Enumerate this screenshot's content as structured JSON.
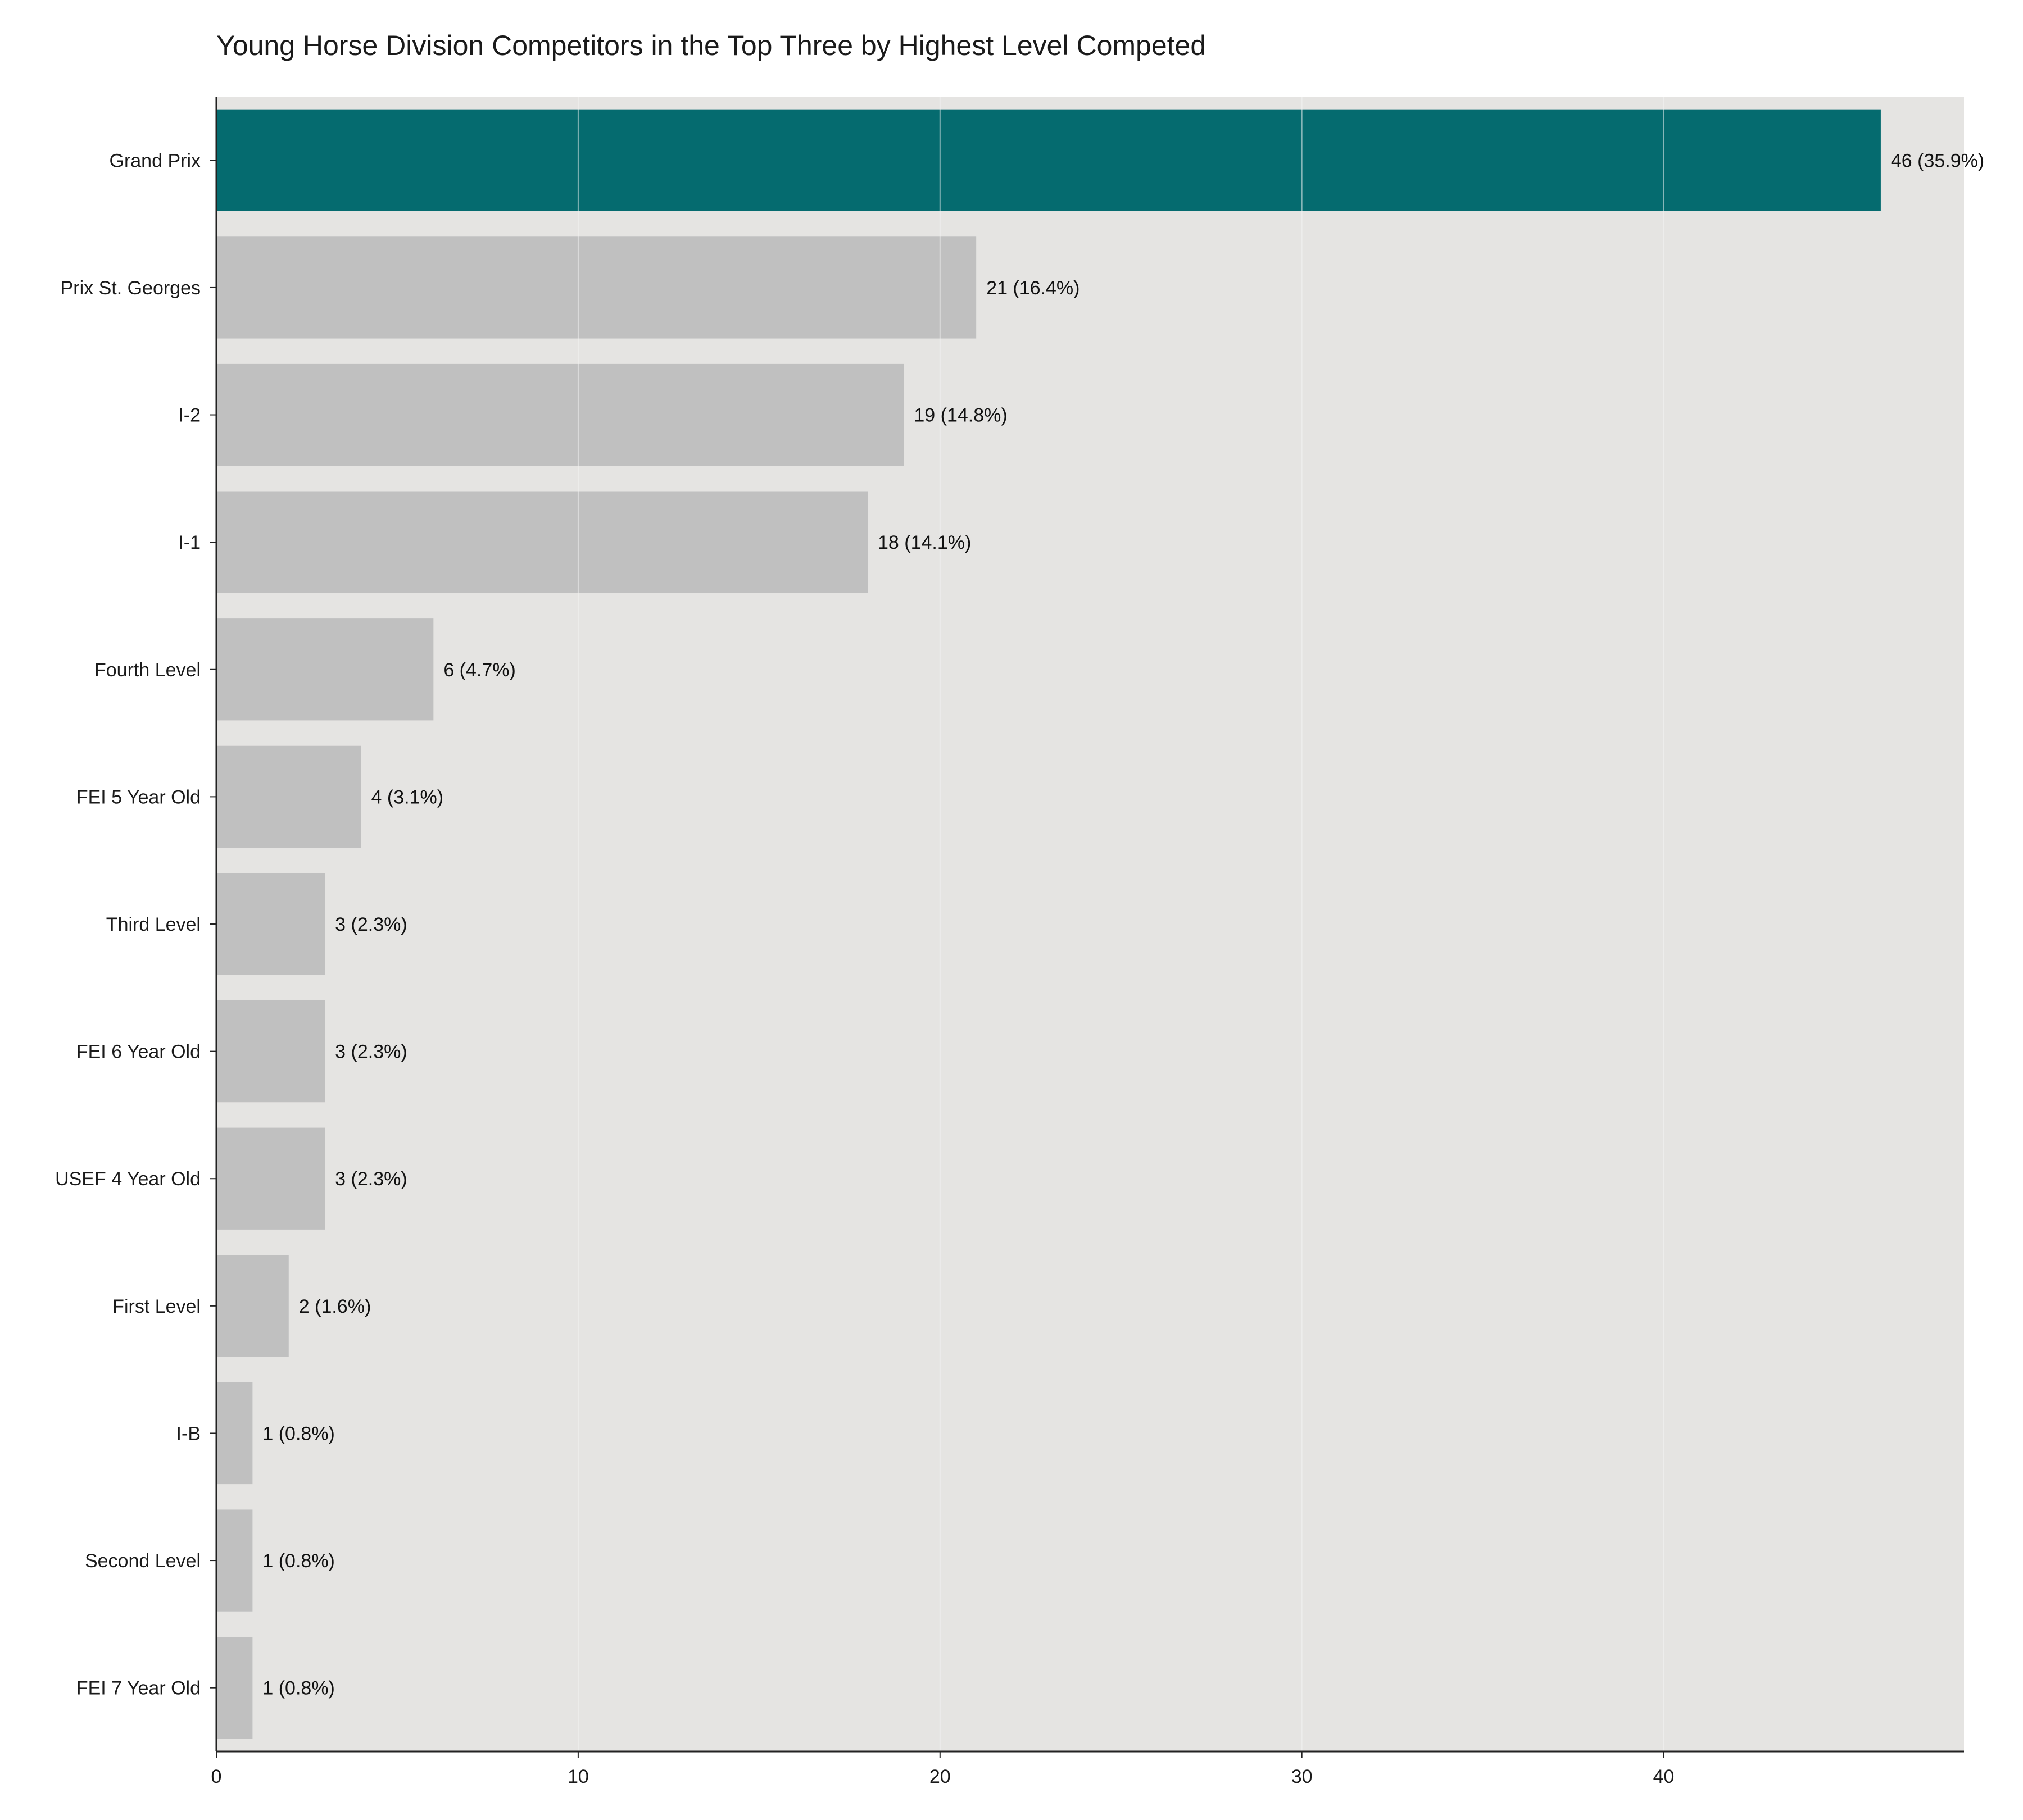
{
  "chart_data": {
    "type": "bar",
    "orientation": "horizontal",
    "title": "Young Horse Division Competitors in the Top Three by Highest Level Competed",
    "xlabel": "",
    "ylabel": "",
    "categories": [
      "Grand Prix",
      "Prix St. Georges",
      "I-2",
      "I-1",
      "Fourth Level",
      "FEI 5 Year Old",
      "Third Level",
      "FEI 6 Year Old",
      "USEF 4 Year Old",
      "First Level",
      "I-B",
      "Second Level",
      "FEI 7 Year Old"
    ],
    "values": [
      46,
      21,
      19,
      18,
      6,
      4,
      3,
      3,
      3,
      2,
      1,
      1,
      1
    ],
    "data_labels": [
      "46 (35.9%)",
      "21 (16.4%)",
      "19 (14.8%)",
      "18 (14.1%)",
      "6 (4.7%)",
      "4 (3.1%)",
      "3 (2.3%)",
      "3 (2.3%)",
      "3 (2.3%)",
      "2 (1.6%)",
      "1 (0.8%)",
      "1 (0.8%)",
      "1 (0.8%)"
    ],
    "xlim": [
      0,
      48.3
    ],
    "xticks": [
      0,
      10,
      20,
      30,
      40
    ],
    "grid": true,
    "legend": "none",
    "highlight_index": 0,
    "colors": {
      "highlight": "#056b6f",
      "bar": "#c0c0c0",
      "plot_background": "#e5e4e2",
      "grid": "#f4f4f4",
      "axis": "#222222"
    }
  }
}
